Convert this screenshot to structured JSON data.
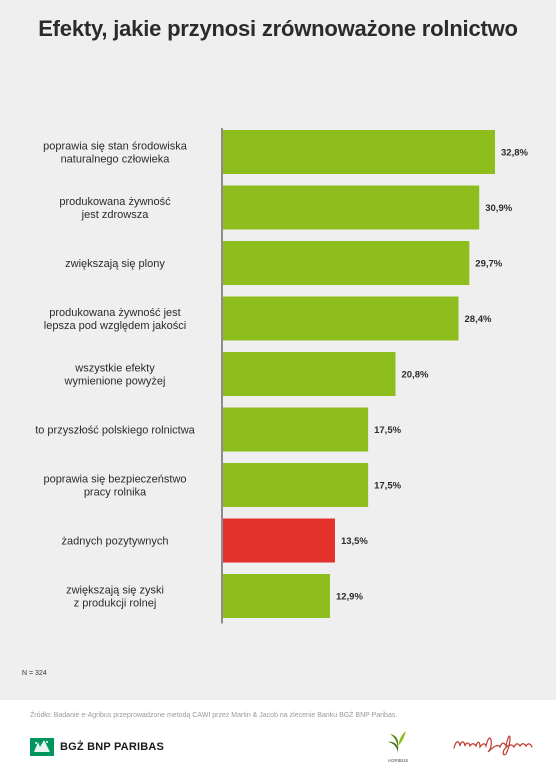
{
  "title": "Efekty, jakie przynosi zrównoważone rolnictwo",
  "chart_data": {
    "type": "bar",
    "orientation": "horizontal",
    "categories": [
      [
        "poprawia się stan środowiska",
        "naturalnego człowieka"
      ],
      [
        "produkowana żywność",
        "jest zdrowsza"
      ],
      [
        "zwiększają się plony"
      ],
      [
        "produkowana żywność jest",
        "lepsza pod względem jakości"
      ],
      [
        "wszystkie efekty",
        "wymienione powyżej"
      ],
      [
        "to przyszłość polskiego rolnictwa"
      ],
      [
        "poprawia się bezpieczeństwo",
        "pracy rolnika"
      ],
      [
        "żadnych pozytywnych"
      ],
      [
        "zwiększają się zyski",
        "z produkcji rolnej"
      ]
    ],
    "values": [
      32.8,
      30.9,
      29.7,
      28.4,
      20.8,
      17.5,
      17.5,
      13.5,
      12.9
    ],
    "value_labels": [
      "32,8%",
      "30,9%",
      "29,7%",
      "28,4%",
      "20,8%",
      "17,5%",
      "17,5%",
      "13,5%",
      "12,9%"
    ],
    "colors": [
      "#8ebd1e",
      "#8ebd1e",
      "#8ebd1e",
      "#8ebd1e",
      "#8ebd1e",
      "#8ebd1e",
      "#8ebd1e",
      "#e2322b",
      "#8ebd1e"
    ],
    "xlim": [
      0,
      32.8
    ],
    "grid": false,
    "legend": false
  },
  "note": "N = 324",
  "source": "Źródło: Badanie e-Agribus przeprowadzone metodą CAWI przez Martin & Jacob na zlecenie Banku BGŻ BNP Paribas.",
  "logos": {
    "bank": "BGŻ BNP PARIBAS",
    "agribus": "AGRIBUS",
    "mj": "martin&jacob"
  },
  "colors": {
    "accent_green": "#8ebd1e",
    "accent_red": "#e2322b",
    "bank_green": "#00965e"
  }
}
